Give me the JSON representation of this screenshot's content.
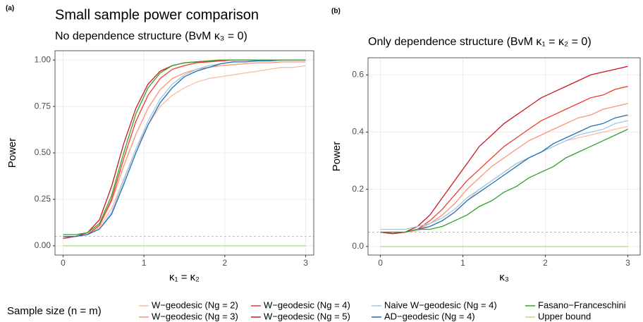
{
  "chart_data": [
    {
      "type": "line",
      "panel_label": "(a)",
      "title": "Small sample power comparison",
      "subtitle": "No dependence structure (BvM κ₃ = 0)",
      "x_label": "κ₁ = κ₂",
      "y_label": "Power",
      "legend_title": "Sample size (n = m)",
      "xlim": [
        -0.1,
        3.1
      ],
      "ylim": [
        -0.05,
        1.05
      ],
      "xticks": [
        0,
        1,
        2,
        3
      ],
      "yticks": [
        {
          "value": 0,
          "label": "0.00"
        },
        {
          "value": 0.25,
          "label": "0.25"
        },
        {
          "value": 0.5,
          "label": "0.50"
        },
        {
          "value": 0.75,
          "label": "0.75"
        },
        {
          "value": 1,
          "label": "1.00"
        }
      ],
      "grid": true,
      "hline": 0.05,
      "hline_color": "#b3b3e6",
      "x": [
        0,
        0.15,
        0.3,
        0.45,
        0.6,
        0.75,
        0.9,
        1.05,
        1.2,
        1.35,
        1.5,
        1.65,
        1.8,
        1.95,
        2.1,
        2.25,
        2.4,
        2.55,
        2.7,
        2.85,
        3
      ],
      "series": [
        {
          "name": "W−geodesic (Ng = 2)",
          "color": "#fcbba1",
          "values": [
            0.05,
            0.05,
            0.06,
            0.1,
            0.2,
            0.36,
            0.52,
            0.65,
            0.75,
            0.81,
            0.85,
            0.88,
            0.9,
            0.91,
            0.92,
            0.93,
            0.94,
            0.95,
            0.96,
            0.96,
            0.97
          ]
        },
        {
          "name": "W−geodesic (Ng = 3)",
          "color": "#fc9272",
          "values": [
            0.05,
            0.05,
            0.06,
            0.11,
            0.24,
            0.43,
            0.6,
            0.74,
            0.84,
            0.9,
            0.93,
            0.95,
            0.96,
            0.97,
            0.975,
            0.98,
            0.985,
            0.985,
            0.99,
            0.99,
            0.99
          ]
        },
        {
          "name": "W−geodesic (Ng = 4)",
          "color": "#ef3b2c",
          "values": [
            0.05,
            0.05,
            0.06,
            0.11,
            0.25,
            0.47,
            0.67,
            0.81,
            0.9,
            0.95,
            0.97,
            0.985,
            0.99,
            0.995,
            1,
            1,
            1,
            1,
            1,
            1,
            1
          ]
        },
        {
          "name": "W−geodesic (Ng = 5)",
          "color": "#cb181d",
          "values": [
            0.04,
            0.05,
            0.07,
            0.14,
            0.32,
            0.55,
            0.74,
            0.87,
            0.94,
            0.97,
            0.985,
            0.99,
            0.995,
            1,
            1,
            1,
            1,
            1,
            1,
            1,
            1
          ]
        },
        {
          "name": "Naive W−geodesic (Ng = 4)",
          "color": "#9ecae1",
          "values": [
            0.05,
            0.05,
            0.06,
            0.09,
            0.18,
            0.35,
            0.52,
            0.67,
            0.79,
            0.87,
            0.92,
            0.95,
            0.97,
            0.98,
            0.99,
            0.99,
            0.995,
            1,
            1,
            1,
            1
          ]
        },
        {
          "name": "AD−geodesic (Ng = 4)",
          "color": "#2171b5",
          "values": [
            0.05,
            0.05,
            0.06,
            0.09,
            0.17,
            0.33,
            0.5,
            0.65,
            0.77,
            0.85,
            0.91,
            0.94,
            0.96,
            0.98,
            0.99,
            0.99,
            0.995,
            0.995,
            1,
            1,
            1
          ]
        },
        {
          "name": "Fasano−Franceschini",
          "color": "#33a02c",
          "values": [
            0.06,
            0.06,
            0.07,
            0.12,
            0.27,
            0.5,
            0.71,
            0.85,
            0.93,
            0.97,
            0.985,
            0.99,
            0.995,
            1,
            1,
            1,
            1,
            1,
            1,
            1,
            1
          ]
        },
        {
          "name": "Upper bound",
          "color": "#b2df8a",
          "values": [
            0,
            0,
            0,
            0,
            0,
            0,
            0,
            0,
            0,
            0,
            0,
            0,
            0,
            0,
            0,
            0,
            0,
            0,
            0,
            0,
            0
          ]
        }
      ]
    },
    {
      "type": "line",
      "panel_label": "(b)",
      "subtitle": "Only dependence structure (BvM κ₁ = κ₂ = 0)",
      "x_label": "κ₃",
      "y_label": "Power",
      "xlim": [
        -0.15,
        3.15
      ],
      "ylim": [
        -0.03,
        0.66
      ],
      "xticks": [
        0,
        1,
        2,
        3
      ],
      "yticks": [
        {
          "value": 0,
          "label": "0.0"
        },
        0.2,
        0.4,
        0.6
      ],
      "grid": true,
      "hline": 0.05,
      "hline_color": "#b3b3e6",
      "x": [
        0,
        0.15,
        0.3,
        0.45,
        0.6,
        0.75,
        0.9,
        1.05,
        1.2,
        1.35,
        1.5,
        1.65,
        1.8,
        1.95,
        2.1,
        2.25,
        2.4,
        2.55,
        2.7,
        2.85,
        3
      ],
      "series": [
        {
          "color": "#fcbba1",
          "values": [
            0.05,
            0.045,
            0.05,
            0.055,
            0.07,
            0.09,
            0.12,
            0.16,
            0.2,
            0.23,
            0.26,
            0.29,
            0.31,
            0.33,
            0.35,
            0.37,
            0.38,
            0.39,
            0.4,
            0.41,
            0.42
          ]
        },
        {
          "color": "#fc9272",
          "values": [
            0.05,
            0.045,
            0.05,
            0.06,
            0.08,
            0.11,
            0.15,
            0.2,
            0.24,
            0.28,
            0.31,
            0.34,
            0.37,
            0.39,
            0.41,
            0.43,
            0.45,
            0.46,
            0.48,
            0.49,
            0.5
          ]
        },
        {
          "color": "#ef3b2c",
          "values": [
            0.05,
            0.045,
            0.05,
            0.06,
            0.09,
            0.13,
            0.18,
            0.23,
            0.27,
            0.31,
            0.35,
            0.38,
            0.41,
            0.44,
            0.46,
            0.48,
            0.5,
            0.52,
            0.53,
            0.55,
            0.56
          ]
        },
        {
          "color": "#cb181d",
          "values": [
            0.05,
            0.045,
            0.05,
            0.07,
            0.11,
            0.17,
            0.23,
            0.29,
            0.35,
            0.39,
            0.43,
            0.46,
            0.49,
            0.52,
            0.54,
            0.56,
            0.58,
            0.6,
            0.61,
            0.62,
            0.63
          ]
        },
        {
          "color": "#9ecae1",
          "values": [
            0.06,
            0.06,
            0.06,
            0.07,
            0.08,
            0.1,
            0.13,
            0.17,
            0.2,
            0.23,
            0.26,
            0.29,
            0.31,
            0.33,
            0.35,
            0.37,
            0.39,
            0.4,
            0.41,
            0.43,
            0.44
          ]
        },
        {
          "color": "#2171b5",
          "values": [
            0.05,
            0.05,
            0.05,
            0.06,
            0.07,
            0.09,
            0.12,
            0.16,
            0.19,
            0.22,
            0.25,
            0.28,
            0.31,
            0.33,
            0.36,
            0.38,
            0.4,
            0.42,
            0.43,
            0.45,
            0.46
          ]
        },
        {
          "color": "#33a02c",
          "values": [
            0.05,
            0.05,
            0.05,
            0.06,
            0.06,
            0.07,
            0.09,
            0.11,
            0.14,
            0.16,
            0.19,
            0.21,
            0.24,
            0.26,
            0.28,
            0.31,
            0.33,
            0.35,
            0.37,
            0.39,
            0.41
          ]
        },
        {
          "color": "#b2df8a",
          "values": [
            0,
            0,
            0,
            0,
            0,
            0,
            0,
            0,
            0,
            0,
            0,
            0,
            0,
            0,
            0,
            0,
            0,
            0,
            0,
            0,
            0
          ]
        }
      ]
    }
  ]
}
